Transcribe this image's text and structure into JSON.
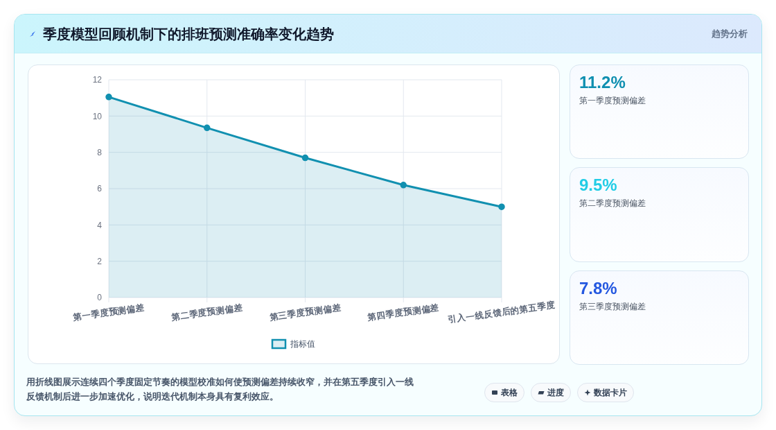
{
  "chart_data": [
    {
      "type": "area",
      "title": "季度模型回顾机制下的排班预测准确率变化趋势",
      "categories": [
        "第一季度预测偏差",
        "第二季度预测偏差",
        "第三季度预测偏差",
        "第四季度预测偏差",
        "引入一线反馈后的第五季度"
      ],
      "series": [
        {
          "name": "指标值",
          "color": "#1190b0",
          "values": [
            11.05,
            9.35,
            7.7,
            6.2,
            5.0
          ]
        }
      ],
      "ylim": [
        0,
        12
      ],
      "yticks": [
        0,
        2,
        4,
        6,
        8,
        10,
        12
      ],
      "grid": true,
      "legend": "bottom",
      "marker": "circle",
      "line_style": "solid",
      "annotations": [
        "趋势分析",
        "用折线图展示连续四个季度固定节奏的模型校准如何使预测偏差持续收窄，并在第五季度引入一线反馈机制后进一步加速优化，说明迭代机制本身具有复利效应。",
        "表格",
        "进度",
        "数据卡片"
      ]
    },
    {
      "type": "other",
      "categories": [
        "第一季度预测偏差",
        "第二季度预测偏差",
        "第三季度预测偏差"
      ],
      "value_labels": [
        "11.2%",
        "9.5%",
        "7.8%"
      ]
    }
  ]
}
